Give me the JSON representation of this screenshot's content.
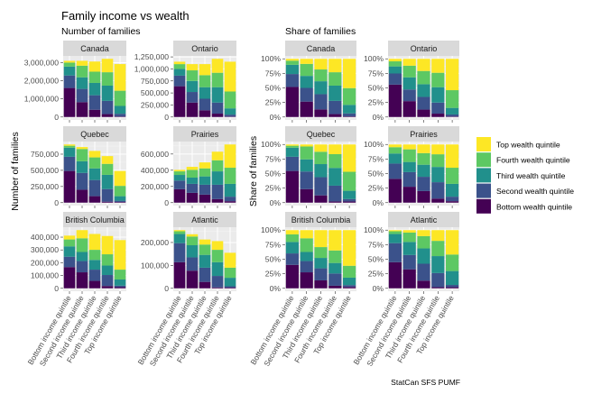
{
  "title": "Family income vs wealth",
  "caption": "StatCan SFS PUMF",
  "left_subtitle": "Number of families",
  "right_subtitle": "Share of families",
  "left_ylabel": "Number of families",
  "right_ylabel": "Share of families",
  "colors": {
    "Top wealth quintile": "#FDE725",
    "Fourth wealth quintile": "#5DC863",
    "Third wealth quintile": "#21908C",
    "Second wealth quintile": "#3B528B",
    "Bottom wealth quintile": "#440154"
  },
  "legend": [
    "Top wealth quintile",
    "Fourth wealth quintile",
    "Third wealth quintile",
    "Second wealth quintile",
    "Bottom wealth quintile"
  ],
  "chart_data": [
    {
      "type": "bar",
      "stacked": true,
      "panel_group": "Number of families",
      "ylabel": "Number of families",
      "categories": [
        "Bottom income quintile",
        "Second income quintile",
        "Third income quintile",
        "Fourth income quintile",
        "Top income quintile"
      ],
      "series_order": [
        "Bottom wealth quintile",
        "Second wealth quintile",
        "Third wealth quintile",
        "Fourth wealth quintile",
        "Top wealth quintile"
      ],
      "scales": "free_y",
      "grid": true,
      "legend_position": "right",
      "facets": [
        {
          "region": "Canada",
          "yticks": [
            0,
            1000000,
            2000000,
            3000000
          ],
          "ytick_labels": [
            "0",
            "1,000,000",
            "2,000,000",
            "3,000,000"
          ],
          "series": [
            [
              1600000,
              820000,
              400000,
              160000,
              30000
            ],
            [
              690000,
              730000,
              800000,
              730000,
              150000
            ],
            [
              490000,
              640000,
              680000,
              840000,
              430000
            ],
            [
              220000,
              640000,
              620000,
              740000,
              840000
            ],
            [
              100000,
              270000,
              560000,
              740000,
              1470000
            ]
          ]
        },
        {
          "region": "Ontario",
          "yticks": [
            0,
            250000,
            500000,
            750000,
            1000000,
            1250000
          ],
          "ytick_labels": [
            "0",
            "250,000",
            "500,000",
            "750,000",
            "1,000,000",
            "1,250,000"
          ],
          "series": [
            [
              640000,
              300000,
              140000,
              70000,
              10000
            ],
            [
              220000,
              220000,
              240000,
              230000,
              40000
            ],
            [
              140000,
              230000,
              240000,
              320000,
              130000
            ],
            [
              100000,
              220000,
              250000,
              300000,
              350000
            ],
            [
              50000,
              130000,
              230000,
              290000,
              620000
            ]
          ]
        },
        {
          "region": "Quebec",
          "yticks": [
            0,
            250000,
            500000,
            750000
          ],
          "ytick_labels": [
            "0",
            "250,000",
            "500,000",
            "750,000"
          ],
          "series": [
            [
              490000,
              200000,
              100000,
              15000,
              10000
            ],
            [
              220000,
              260000,
              250000,
              195000,
              20000
            ],
            [
              140000,
              180000,
              180000,
              220000,
              70000
            ],
            [
              30000,
              190000,
              170000,
              170000,
              160000
            ],
            [
              20000,
              30000,
              100000,
              120000,
              230000
            ]
          ]
        },
        {
          "region": "Prairies",
          "yticks": [
            0,
            200000,
            400000,
            600000
          ],
          "ytick_labels": [
            "0",
            "200,000",
            "400,000",
            "600,000"
          ],
          "series": [
            [
              166000,
              121000,
              99000,
              44000,
              18000
            ],
            [
              106000,
              111000,
              122000,
              177000,
              56000
            ],
            [
              70000,
              77000,
              103000,
              165000,
              158000
            ],
            [
              44000,
              96000,
              99000,
              137000,
              199000
            ],
            [
              19000,
              37000,
              74000,
              106000,
              287000
            ]
          ]
        },
        {
          "region": "British Columbia",
          "yticks": [
            0,
            100000,
            200000,
            300000,
            400000
          ],
          "ytick_labels": [
            "0",
            "100,000",
            "200,000",
            "300,000",
            "400,000"
          ],
          "series": [
            [
              166000,
              125000,
              58000,
              18000,
              9000
            ],
            [
              81000,
              88000,
              88000,
              86000,
              12000
            ],
            [
              81000,
              71000,
              76000,
              74000,
              48000
            ],
            [
              54000,
              107000,
              79000,
              88000,
              77000
            ],
            [
              30000,
              64000,
              124000,
              143000,
              231000
            ]
          ]
        },
        {
          "region": "Atlantic",
          "yticks": [
            0,
            100000,
            200000
          ],
          "ytick_labels": [
            "0",
            "100,000",
            "200,000"
          ],
          "series": [
            [
              114000,
              77000,
              28000,
              4000,
              3000
            ],
            [
              83000,
              58000,
              62000,
              50000,
              6000
            ],
            [
              40000,
              53000,
              56000,
              60000,
              37000
            ],
            [
              12000,
              38000,
              45000,
              54000,
              44000
            ],
            [
              5000,
              10000,
              22000,
              38000,
              65000
            ]
          ]
        }
      ]
    },
    {
      "type": "bar",
      "stacked": true,
      "normalized": true,
      "panel_group": "Share of families",
      "ylabel": "Share of families",
      "ylim": [
        0,
        1
      ],
      "yticks": [
        0,
        0.25,
        0.5,
        0.75,
        1
      ],
      "ytick_labels": [
        "0%",
        "25%",
        "50%",
        "75%",
        "100%"
      ],
      "note": "same counts as Number of families, shown as share of each bar"
    }
  ]
}
